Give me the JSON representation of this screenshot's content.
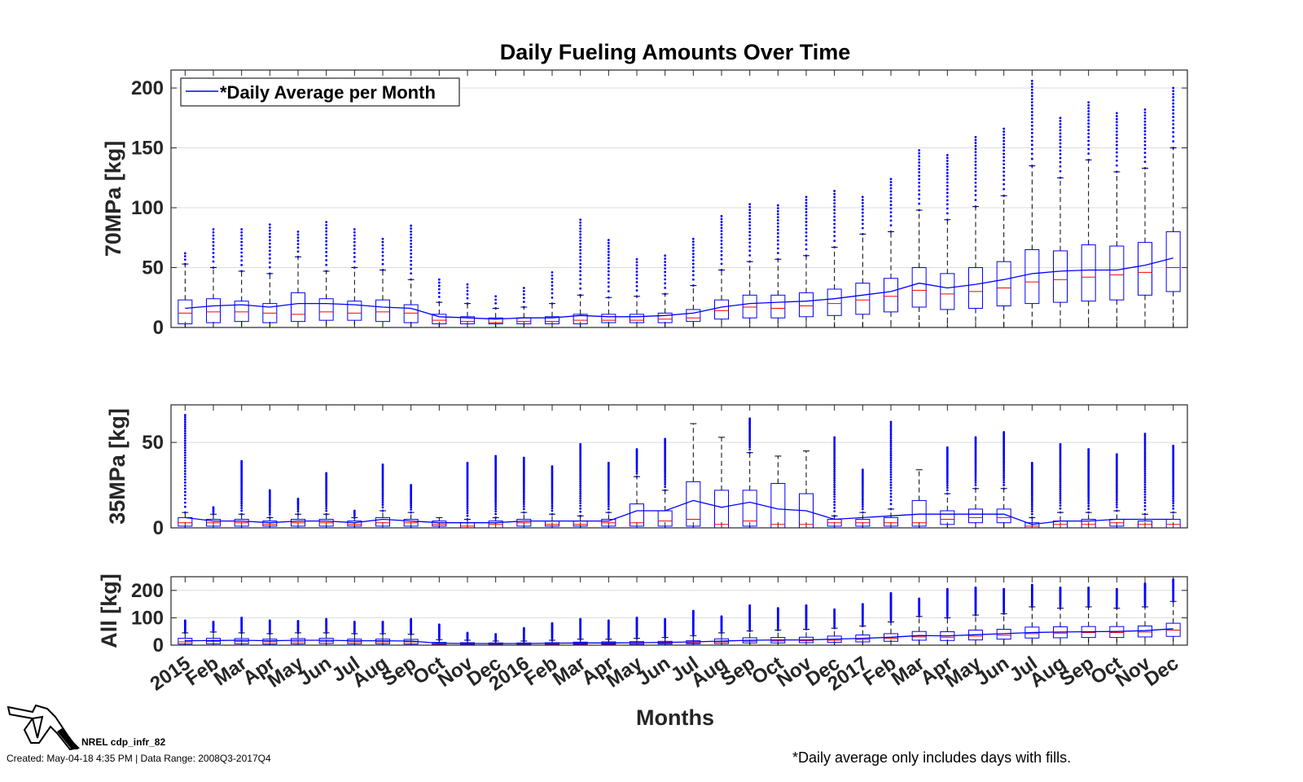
{
  "chart_data": {
    "type": "box",
    "title": "Daily Fueling Amounts Over Time",
    "xlabel": "Months",
    "months": [
      "2015",
      "Feb",
      "Mar",
      "Apr",
      "May",
      "Jun",
      "Jul",
      "Aug",
      "Sep",
      "Oct",
      "Nov",
      "Dec",
      "2016",
      "Feb",
      "Mar",
      "Apr",
      "May",
      "Jun",
      "Jul",
      "Aug",
      "Sep",
      "Oct",
      "Nov",
      "Dec",
      "2017",
      "Feb",
      "Mar",
      "Apr",
      "May",
      "Jun",
      "Jul",
      "Aug",
      "Sep",
      "Oct",
      "Nov",
      "Dec"
    ],
    "legend": "*Daily Average per Month",
    "legend_position": "top-left",
    "colors": {
      "box": "#0000ff",
      "median": "#ff0000",
      "whisker": "#000000",
      "outlier": "#0000ff",
      "mean_line": "#0000ff",
      "grid": "#dcdcdc"
    },
    "panels": [
      {
        "ylabel": "70MPa [kg]",
        "ylim": [
          0,
          215
        ],
        "yticks": [
          0,
          50,
          100,
          150,
          200
        ],
        "mean": [
          16,
          18,
          19,
          17,
          20,
          20,
          19,
          17,
          16,
          9,
          8,
          7,
          8,
          8,
          10,
          9,
          9,
          10,
          12,
          17,
          20,
          21,
          22,
          24,
          27,
          30,
          37,
          33,
          36,
          40,
          45,
          47,
          48,
          48,
          52,
          58
        ],
        "q1": [
          3,
          4,
          5,
          4,
          5,
          6,
          6,
          5,
          4,
          3,
          3,
          3,
          3,
          3,
          3,
          4,
          4,
          4,
          5,
          7,
          8,
          8,
          9,
          10,
          11,
          13,
          17,
          15,
          16,
          18,
          20,
          21,
          22,
          23,
          27,
          30
        ],
        "median": [
          12,
          13,
          13,
          12,
          11,
          13,
          12,
          13,
          12,
          6,
          5,
          4,
          5,
          5,
          6,
          6,
          6,
          7,
          8,
          14,
          17,
          16,
          18,
          20,
          23,
          26,
          31,
          28,
          30,
          33,
          38,
          40,
          42,
          44,
          46,
          50
        ],
        "q3": [
          23,
          24,
          22,
          20,
          29,
          24,
          22,
          23,
          19,
          11,
          9,
          8,
          8,
          9,
          11,
          11,
          11,
          12,
          15,
          23,
          27,
          27,
          29,
          32,
          37,
          41,
          50,
          45,
          50,
          55,
          65,
          64,
          69,
          68,
          71,
          80
        ],
        "wlo": [
          0,
          0,
          0,
          0,
          0,
          0,
          0,
          0,
          0,
          0,
          0,
          0,
          0,
          0,
          0,
          0,
          0,
          0,
          0,
          0,
          0,
          0,
          0,
          0,
          0,
          0,
          0,
          0,
          0,
          0,
          0,
          0,
          0,
          0,
          0,
          0
        ],
        "whi": [
          53,
          50,
          47,
          45,
          59,
          47,
          50,
          48,
          40,
          21,
          20,
          16,
          17,
          20,
          27,
          25,
          26,
          28,
          35,
          48,
          55,
          57,
          60,
          67,
          78,
          80,
          98,
          90,
          101,
          110,
          135,
          125,
          140,
          130,
          133,
          150
        ],
        "outmax": [
          62,
          82,
          82,
          86,
          80,
          88,
          82,
          74,
          85,
          40,
          36,
          26,
          33,
          46,
          90,
          73,
          57,
          60,
          74,
          93,
          103,
          102,
          109,
          114,
          109,
          124,
          148,
          144,
          159,
          166,
          206,
          175,
          188,
          179,
          182,
          200
        ]
      },
      {
        "ylabel": "35MPa [kg]",
        "ylim": [
          0,
          72
        ],
        "yticks": [
          0,
          50
        ],
        "mean": [
          6,
          4,
          4,
          3,
          4,
          4,
          3,
          5,
          4,
          3,
          3,
          3,
          4,
          4,
          4,
          4,
          10,
          10,
          16,
          12,
          15,
          11,
          10,
          5,
          6,
          7,
          8,
          8,
          8,
          8,
          2,
          4,
          4,
          5,
          5,
          5
        ],
        "q1": [
          1,
          1,
          1,
          1,
          1,
          1,
          1,
          1,
          1,
          1,
          0,
          0,
          1,
          1,
          1,
          1,
          1,
          1,
          1,
          0,
          1,
          0,
          0,
          1,
          1,
          1,
          1,
          2,
          3,
          3,
          0,
          0,
          0,
          1,
          0,
          0
        ],
        "median": [
          3,
          3,
          3,
          2,
          3,
          3,
          2,
          3,
          3,
          2,
          1,
          2,
          3,
          2,
          2,
          3,
          3,
          4,
          5,
          2,
          4,
          2,
          2,
          3,
          3,
          3,
          3,
          5,
          6,
          6,
          1,
          2,
          2,
          3,
          2,
          2
        ],
        "q3": [
          6,
          5,
          5,
          4,
          5,
          5,
          4,
          6,
          5,
          4,
          3,
          4,
          5,
          4,
          4,
          5,
          14,
          10,
          27,
          22,
          22,
          26,
          20,
          5,
          5,
          6,
          16,
          10,
          11,
          11,
          3,
          4,
          5,
          5,
          4,
          5
        ],
        "wlo": [
          0,
          0,
          0,
          0,
          0,
          0,
          0,
          0,
          0,
          0,
          0,
          0,
          0,
          0,
          0,
          0,
          0,
          0,
          0,
          0,
          0,
          0,
          0,
          0,
          0,
          0,
          0,
          0,
          0,
          0,
          0,
          0,
          0,
          0,
          0,
          0
        ],
        "whi": [
          9,
          8,
          8,
          6,
          8,
          8,
          6,
          10,
          9,
          6,
          5,
          6,
          9,
          8,
          7,
          9,
          30,
          22,
          61,
          53,
          44,
          42,
          45,
          7,
          9,
          11,
          34,
          20,
          23,
          23,
          6,
          9,
          9,
          10,
          8,
          9
        ],
        "outmax": [
          66,
          12,
          39,
          22,
          17,
          32,
          10,
          37,
          25,
          6,
          38,
          42,
          41,
          36,
          49,
          38,
          46,
          52,
          60,
          53,
          64,
          42,
          45,
          53,
          34,
          62,
          34,
          47,
          53,
          56,
          38,
          49,
          46,
          43,
          55,
          48
        ]
      },
      {
        "ylabel": "All [kg]",
        "ylim": [
          0,
          250
        ],
        "yticks": [
          0,
          100,
          200
        ],
        "mean": [
          16,
          17,
          18,
          16,
          18,
          18,
          16,
          16,
          15,
          7,
          6,
          6,
          6,
          7,
          8,
          8,
          9,
          10,
          12,
          15,
          18,
          19,
          19,
          22,
          25,
          29,
          35,
          34,
          38,
          42,
          46,
          48,
          49,
          50,
          53,
          60
        ],
        "q1": [
          4,
          5,
          5,
          4,
          5,
          6,
          5,
          5,
          4,
          2,
          2,
          2,
          2,
          3,
          3,
          3,
          3,
          4,
          5,
          6,
          8,
          8,
          9,
          10,
          12,
          14,
          18,
          17,
          19,
          22,
          26,
          27,
          28,
          28,
          30,
          32
        ],
        "median": [
          12,
          13,
          13,
          12,
          12,
          13,
          12,
          12,
          12,
          5,
          5,
          4,
          5,
          5,
          6,
          6,
          7,
          7,
          8,
          12,
          14,
          15,
          16,
          18,
          21,
          25,
          30,
          29,
          33,
          36,
          42,
          44,
          46,
          46,
          48,
          55
        ],
        "q3": [
          25,
          25,
          24,
          22,
          24,
          25,
          22,
          22,
          21,
          10,
          9,
          8,
          8,
          9,
          11,
          12,
          13,
          14,
          16,
          23,
          27,
          28,
          29,
          33,
          37,
          42,
          50,
          49,
          55,
          58,
          66,
          67,
          68,
          68,
          70,
          80
        ],
        "wlo": [
          0,
          0,
          0,
          0,
          0,
          0,
          0,
          0,
          0,
          0,
          0,
          0,
          0,
          0,
          0,
          0,
          0,
          0,
          0,
          0,
          0,
          0,
          0,
          0,
          0,
          0,
          0,
          0,
          0,
          0,
          0,
          0,
          0,
          0,
          0,
          0
        ],
        "whi": [
          45,
          48,
          45,
          42,
          45,
          45,
          42,
          42,
          40,
          20,
          18,
          15,
          15,
          18,
          22,
          22,
          25,
          28,
          35,
          45,
          52,
          55,
          58,
          62,
          70,
          85,
          105,
          100,
          110,
          115,
          140,
          135,
          140,
          135,
          140,
          160
        ],
        "outmax": [
          90,
          85,
          100,
          90,
          88,
          95,
          85,
          85,
          95,
          75,
          45,
          40,
          62,
          80,
          95,
          90,
          100,
          95,
          125,
          105,
          145,
          135,
          145,
          130,
          150,
          190,
          170,
          205,
          210,
          205,
          220,
          210,
          210,
          205,
          225,
          240
        ]
      }
    ]
  },
  "footer": {
    "id": "NREL cdp_infr_82",
    "created": "Created: May-04-18  4:35 PM | Data Range: 2008Q3-2017Q4",
    "footnote": "*Daily average only includes days with fills.",
    "logo_icon": "fuel-nozzle-icon"
  }
}
